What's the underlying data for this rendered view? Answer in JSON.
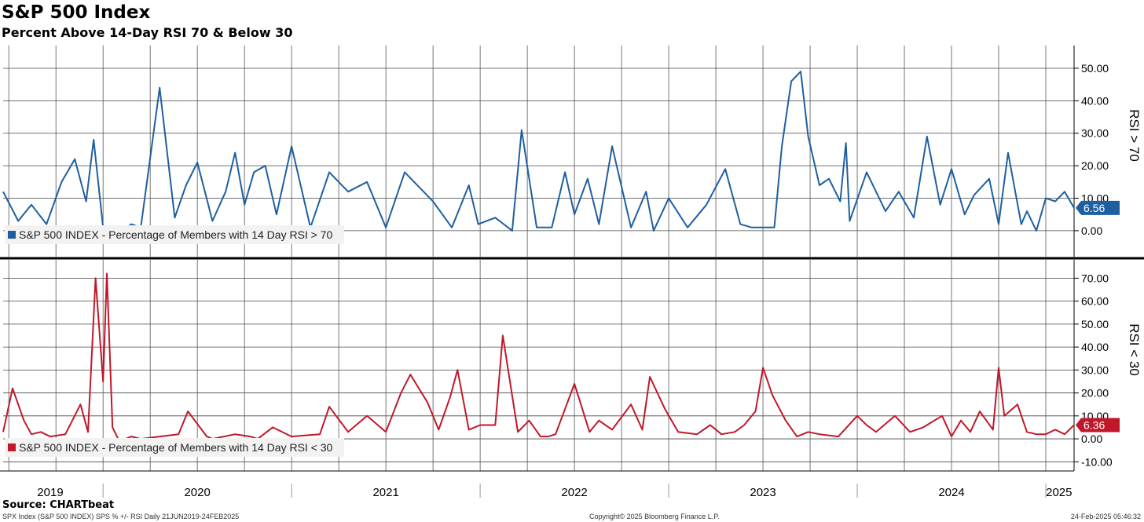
{
  "title": "S&P 500 Index",
  "subtitle": "Percent Above 14-Day RSI 70 & Below 30",
  "source": "Source: CHARTbeat",
  "footer": {
    "left": "SPX Index (S&P 500 INDEX) SPS % +/- RSI  Daily 21JUN2019-24FEB2025",
    "center": "Copyright© 2025 Bloomberg Finance L.P.",
    "right": "24-Feb-2025 05:46:32"
  },
  "colors": {
    "upper": "#1f5fa0",
    "lower": "#c0182a",
    "grid": "#000000"
  },
  "chart_data": [
    {
      "type": "line",
      "ylabel": "RSI > 70",
      "ylim": [
        -8,
        57
      ],
      "yticks": [
        "0.00",
        "10.00",
        "20.00",
        "30.00",
        "40.00",
        "50.00"
      ],
      "legend": "S&P 500 INDEX - Percentage of Members with 14 Day RSI > 70",
      "last_value": "6.56",
      "series": [
        {
          "name": "S&P 500 INDEX - Percentage of Members with 14 Day RSI > 70",
          "x": [
            2019.47,
            2019.55,
            2019.62,
            2019.7,
            2019.78,
            2019.85,
            2019.91,
            2019.95,
            2020.0,
            2020.05,
            2020.1,
            2020.15,
            2020.2,
            2020.3,
            2020.38,
            2020.44,
            2020.5,
            2020.58,
            2020.65,
            2020.7,
            2020.75,
            2020.8,
            2020.86,
            2020.92,
            2021.0,
            2021.1,
            2021.2,
            2021.3,
            2021.4,
            2021.5,
            2021.6,
            2021.7,
            2021.75,
            2021.85,
            2021.94,
            2021.99,
            2022.08,
            2022.17,
            2022.22,
            2022.3,
            2022.38,
            2022.45,
            2022.5,
            2022.57,
            2022.63,
            2022.7,
            2022.8,
            2022.88,
            2022.92,
            2023.0,
            2023.1,
            2023.2,
            2023.3,
            2023.38,
            2023.44,
            2023.5,
            2023.56,
            2023.6,
            2023.65,
            2023.7,
            2023.74,
            2023.8,
            2023.85,
            2023.91,
            2023.94,
            2023.96,
            2024.05,
            2024.15,
            2024.22,
            2024.3,
            2024.37,
            2024.44,
            2024.5,
            2024.57,
            2024.62,
            2024.7,
            2024.75,
            2024.8,
            2024.87,
            2024.9,
            2024.95,
            2025.0,
            2025.05,
            2025.1,
            2025.15
          ],
          "values": [
            12,
            3,
            8,
            2,
            15,
            22,
            9,
            28,
            1,
            0,
            0,
            2,
            1,
            44,
            4,
            14,
            21,
            3,
            12,
            24,
            8,
            18,
            20,
            5,
            26,
            1,
            18,
            12,
            15,
            1,
            18,
            12,
            9,
            1,
            14,
            2,
            4,
            0,
            31,
            1,
            1,
            18,
            5,
            16,
            2,
            26,
            1,
            12,
            0,
            10,
            1,
            8,
            19,
            2,
            1,
            1,
            1,
            26,
            46,
            49,
            29,
            14,
            16,
            9,
            27,
            3,
            18,
            6,
            12,
            4,
            29,
            8,
            19,
            5,
            11,
            16,
            2,
            24,
            2,
            6,
            0,
            10,
            9,
            12,
            7
          ]
        }
      ]
    },
    {
      "type": "line",
      "ylabel": "RSI < 30",
      "ylim": [
        -14,
        78
      ],
      "yticks": [
        "-10.00",
        "0.00",
        "10.00",
        "20.00",
        "30.00",
        "40.00",
        "50.00",
        "60.00",
        "70.00"
      ],
      "legend": "S&P 500 INDEX - Percentage of Members with 14 Day RSI < 30",
      "last_value": "6.36",
      "series": [
        {
          "name": "S&P 500 INDEX - Percentage of Members with 14 Day RSI < 30",
          "x": [
            2019.47,
            2019.52,
            2019.58,
            2019.62,
            2019.67,
            2019.72,
            2019.8,
            2019.88,
            2019.92,
            2019.96,
            2020.0,
            2020.02,
            2020.05,
            2020.08,
            2020.1,
            2020.12,
            2020.15,
            2020.2,
            2020.3,
            2020.4,
            2020.45,
            2020.55,
            2020.58,
            2020.7,
            2020.78,
            2020.82,
            2020.9,
            2021.0,
            2021.15,
            2021.2,
            2021.3,
            2021.4,
            2021.5,
            2021.58,
            2021.63,
            2021.72,
            2021.78,
            2021.84,
            2021.88,
            2021.94,
            2022.0,
            2022.08,
            2022.12,
            2022.2,
            2022.26,
            2022.32,
            2022.36,
            2022.4,
            2022.5,
            2022.58,
            2022.63,
            2022.7,
            2022.8,
            2022.86,
            2022.9,
            2022.98,
            2023.05,
            2023.15,
            2023.22,
            2023.28,
            2023.35,
            2023.4,
            2023.46,
            2023.5,
            2023.55,
            2023.62,
            2023.68,
            2023.74,
            2023.8,
            2023.9,
            2024.0,
            2024.05,
            2024.1,
            2024.2,
            2024.28,
            2024.35,
            2024.45,
            2024.5,
            2024.55,
            2024.6,
            2024.65,
            2024.72,
            2024.75,
            2024.78,
            2024.85,
            2024.9,
            2024.95,
            2025.0,
            2025.05,
            2025.1,
            2025.15
          ],
          "values": [
            3,
            22,
            8,
            2,
            3,
            1,
            2,
            15,
            3,
            70,
            25,
            72,
            5,
            0,
            0,
            0,
            1,
            0,
            1,
            2,
            12,
            1,
            0,
            2,
            1,
            0,
            5,
            1,
            2,
            14,
            3,
            10,
            3,
            20,
            28,
            16,
            4,
            18,
            30,
            4,
            6,
            6,
            45,
            3,
            8,
            1,
            1,
            2,
            24,
            3,
            8,
            4,
            15,
            4,
            27,
            13,
            3,
            2,
            6,
            2,
            3,
            6,
            12,
            31,
            19,
            8,
            1,
            3,
            2,
            1,
            10,
            6,
            3,
            10,
            3,
            5,
            10,
            1,
            8,
            3,
            12,
            4,
            31,
            10,
            15,
            3,
            2,
            2,
            4,
            2,
            6
          ]
        }
      ]
    }
  ],
  "x_axis": {
    "labels": [
      "2019",
      "2020",
      "2021",
      "2022",
      "2023",
      "2024",
      "2025"
    ],
    "range": [
      2019.47,
      2025.15
    ]
  }
}
